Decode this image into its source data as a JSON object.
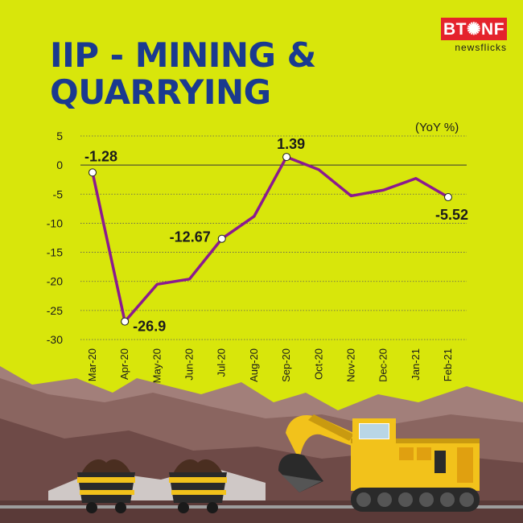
{
  "header": {
    "title_line1": "IIP - MINING &",
    "title_line2": "QUARRYING",
    "logo_main": "BT✺NF",
    "logo_sub": "newsflicks"
  },
  "colors": {
    "background": "#d8e60b",
    "title": "#1a3a8f",
    "line": "#8b1a8f",
    "logo": "#e4232c"
  },
  "chart_data": {
    "type": "line",
    "unit_label": "(YoY %)",
    "categories": [
      "Mar-20",
      "Apr-20",
      "May-20",
      "Jun-20",
      "Jul-20",
      "Aug-20",
      "Sep-20",
      "Oct-20",
      "Nov-20",
      "Dec-20",
      "Jan-21",
      "Feb-21"
    ],
    "series": [
      {
        "values": [
          -1.28,
          -26.9,
          -20.5,
          -19.6,
          -12.67,
          -8.8,
          1.39,
          -0.8,
          -5.3,
          -4.3,
          -2.3,
          -5.52
        ]
      }
    ],
    "labeled_points": [
      {
        "index": 0,
        "label": "-1.28"
      },
      {
        "index": 1,
        "label": "-26.9"
      },
      {
        "index": 4,
        "label": "-12.67"
      },
      {
        "index": 6,
        "label": "1.39"
      },
      {
        "index": 11,
        "label": "-5.52"
      }
    ],
    "yticks": [
      5,
      0,
      -5,
      -10,
      -15,
      -20,
      -25,
      -30
    ],
    "ylim": [
      -30,
      5
    ],
    "grid": true
  },
  "illustration": {
    "icons": [
      "mountains",
      "ore-cart-icon",
      "ore-cart-icon",
      "excavator-icon"
    ]
  }
}
